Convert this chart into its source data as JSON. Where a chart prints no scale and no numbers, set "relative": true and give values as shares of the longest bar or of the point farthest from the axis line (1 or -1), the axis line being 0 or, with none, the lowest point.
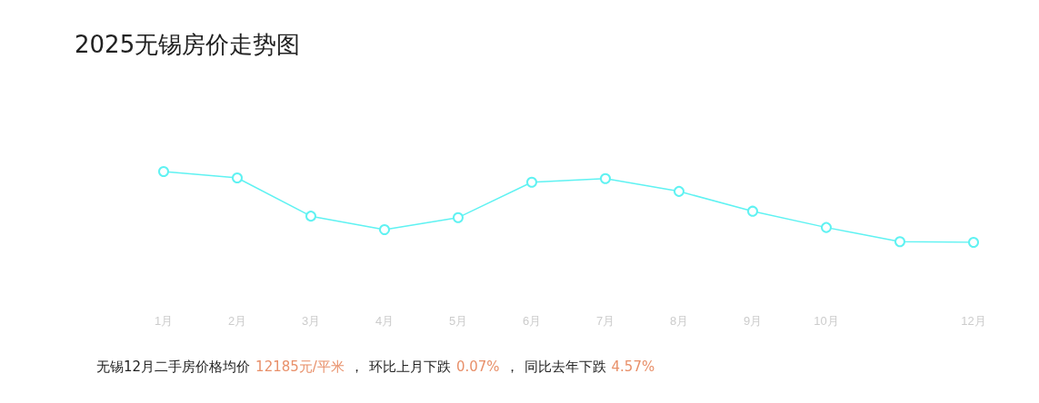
{
  "chart_data": {
    "type": "line",
    "title": "2025无锡房价走势图",
    "categories": [
      "1月",
      "2月",
      "3月",
      "4月",
      "5月",
      "6月",
      "7月",
      "8月",
      "9月",
      "10月",
      null,
      "12月"
    ],
    "series": [
      {
        "color": "#5ff2f2",
        "values": [
          1,
          0.91,
          0.37,
          0.18,
          0.35,
          0.85,
          0.9,
          0.72,
          0.44,
          0.21,
          0.01,
          0
        ]
      }
    ],
    "relative": true,
    "marker": "circle",
    "grid": false,
    "annotations": [
      "无锡12月二手房价格均价",
      "12185元/平米",
      "，",
      "环比上月下跌",
      "0.07%",
      "，",
      "同比去年下跌",
      "4.57%"
    ]
  }
}
